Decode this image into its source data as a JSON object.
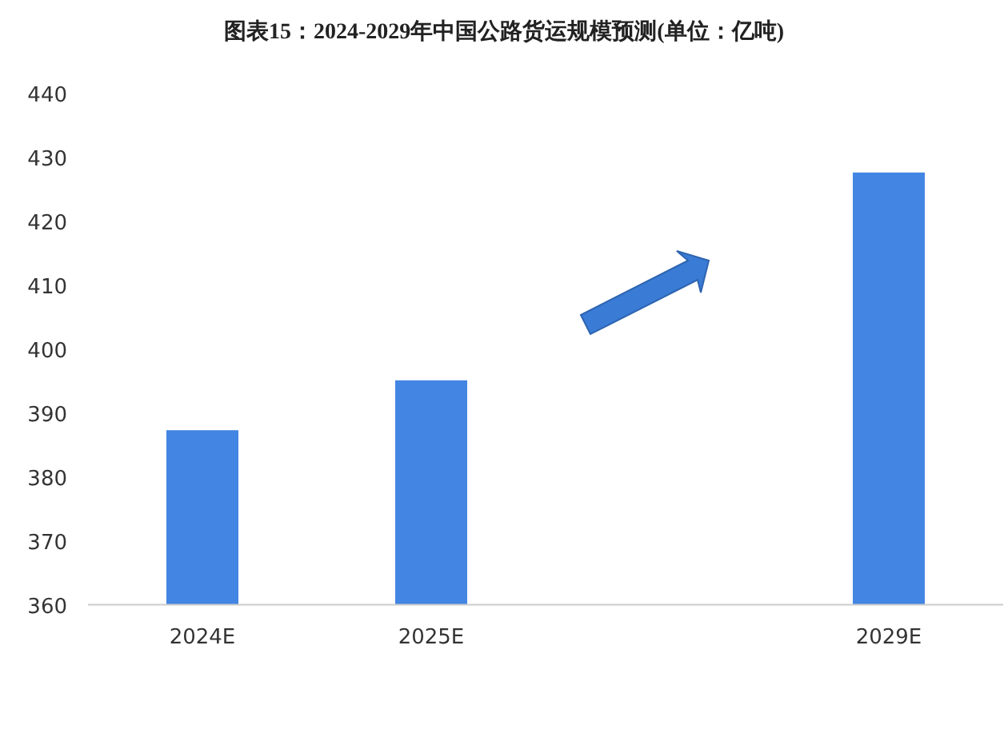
{
  "chart_data": {
    "type": "bar",
    "title": "图表15：2024-2029年中国公路货运规模预测(单位：亿吨)",
    "categories": [
      "2024E",
      "2025E",
      null,
      "2029E"
    ],
    "values": [
      387.3,
      395.1,
      null,
      427.6
    ],
    "color": "#4285e2",
    "ylim": [
      360,
      440
    ],
    "yticks": [
      360,
      370,
      380,
      390,
      400,
      410,
      420,
      430,
      440
    ]
  }
}
